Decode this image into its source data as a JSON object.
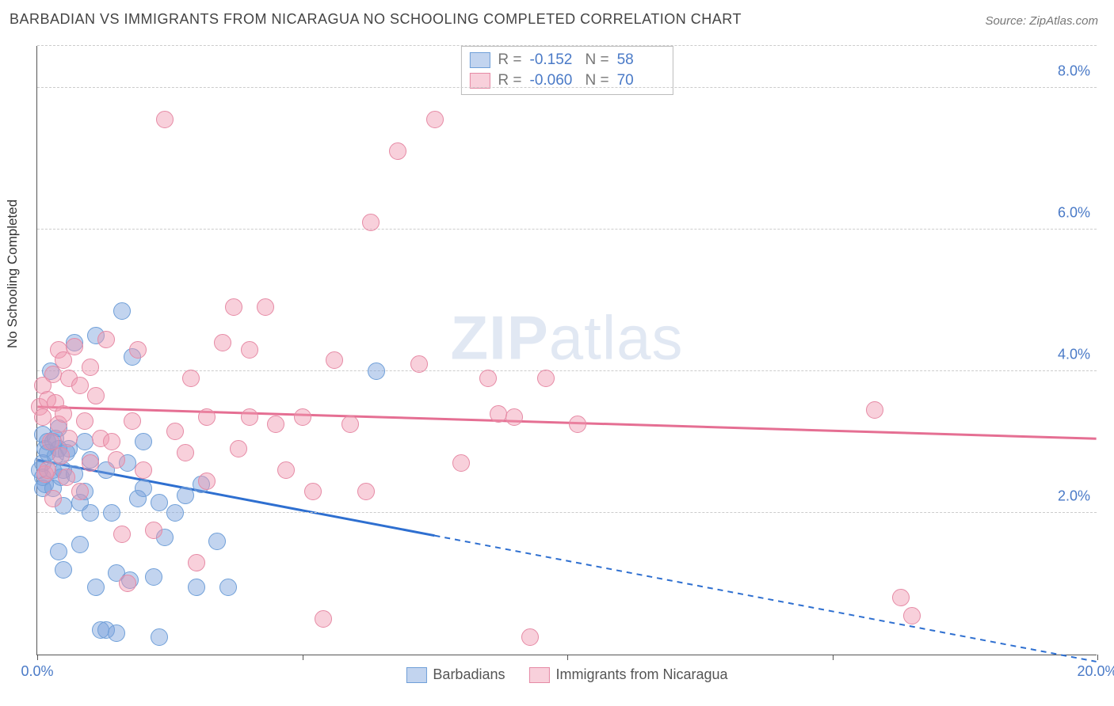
{
  "title": "BARBADIAN VS IMMIGRANTS FROM NICARAGUA NO SCHOOLING COMPLETED CORRELATION CHART",
  "source": "Source: ZipAtlas.com",
  "ylabel": "No Schooling Completed",
  "watermark_a": "ZIP",
  "watermark_b": "atlas",
  "chart": {
    "type": "scatter",
    "xlim": [
      0,
      20
    ],
    "ylim": [
      0,
      8.6
    ],
    "xticks": [
      0,
      5,
      10,
      15,
      20
    ],
    "yticks": [
      2,
      4,
      6,
      8
    ],
    "xtick_labels": {
      "0": "0.0%",
      "20": "20.0%"
    },
    "ytick_labels": {
      "2": "2.0%",
      "4": "4.0%",
      "6": "6.0%",
      "8": "8.0%"
    },
    "grid_color": "#cccccc",
    "background": "#ffffff",
    "point_radius": 11,
    "series": [
      {
        "key": "barbadians",
        "label": "Barbadians",
        "fill": "rgba(120,160,220,0.45)",
        "stroke": "#6f9fd8",
        "line_color": "#2e6fd0",
        "r": "-0.152",
        "n": "58",
        "trend": {
          "x1": 0,
          "y1": 2.75,
          "x2": 20,
          "y2": -0.1,
          "solid_until_x": 7.5
        },
        "points": [
          [
            0.05,
            2.6
          ],
          [
            0.1,
            2.7
          ],
          [
            0.1,
            2.5
          ],
          [
            0.1,
            3.1
          ],
          [
            0.1,
            2.35
          ],
          [
            0.15,
            2.9
          ],
          [
            0.15,
            2.4
          ],
          [
            0.2,
            2.85
          ],
          [
            0.2,
            3.0
          ],
          [
            0.25,
            4.0
          ],
          [
            0.3,
            2.6
          ],
          [
            0.3,
            2.35
          ],
          [
            0.3,
            3.0
          ],
          [
            0.35,
            2.8
          ],
          [
            0.35,
            3.05
          ],
          [
            0.4,
            1.45
          ],
          [
            0.4,
            2.9
          ],
          [
            0.4,
            3.2
          ],
          [
            0.45,
            2.5
          ],
          [
            0.5,
            2.6
          ],
          [
            0.5,
            2.1
          ],
          [
            0.5,
            1.2
          ],
          [
            0.55,
            2.85
          ],
          [
            0.6,
            2.9
          ],
          [
            0.7,
            4.4
          ],
          [
            0.7,
            2.55
          ],
          [
            0.8,
            1.55
          ],
          [
            0.8,
            2.15
          ],
          [
            0.9,
            3.0
          ],
          [
            0.9,
            2.3
          ],
          [
            1.0,
            2.0
          ],
          [
            1.0,
            2.75
          ],
          [
            1.1,
            4.5
          ],
          [
            1.1,
            0.95
          ],
          [
            1.2,
            0.35
          ],
          [
            1.3,
            2.6
          ],
          [
            1.3,
            0.35
          ],
          [
            1.4,
            2.0
          ],
          [
            1.5,
            1.15
          ],
          [
            1.5,
            0.3
          ],
          [
            1.6,
            4.85
          ],
          [
            1.7,
            2.7
          ],
          [
            1.75,
            1.05
          ],
          [
            1.8,
            4.2
          ],
          [
            1.9,
            2.2
          ],
          [
            2.0,
            3.0
          ],
          [
            2.0,
            2.35
          ],
          [
            2.2,
            1.1
          ],
          [
            2.3,
            0.25
          ],
          [
            2.3,
            2.15
          ],
          [
            2.4,
            1.65
          ],
          [
            2.6,
            2.0
          ],
          [
            2.8,
            2.25
          ],
          [
            3.0,
            0.95
          ],
          [
            3.1,
            2.4
          ],
          [
            3.4,
            1.6
          ],
          [
            3.6,
            0.95
          ],
          [
            6.4,
            4.0
          ]
        ]
      },
      {
        "key": "nicaragua",
        "label": "Immigrants from Nicaragua",
        "fill": "rgba(240,150,175,0.45)",
        "stroke": "#e68aa5",
        "line_color": "#e56f93",
        "r": "-0.060",
        "n": "70",
        "trend": {
          "x1": 0,
          "y1": 3.5,
          "x2": 20,
          "y2": 3.05,
          "solid_until_x": 20
        },
        "points": [
          [
            0.05,
            3.5
          ],
          [
            0.1,
            3.8
          ],
          [
            0.1,
            3.35
          ],
          [
            0.15,
            2.55
          ],
          [
            0.2,
            3.6
          ],
          [
            0.2,
            2.6
          ],
          [
            0.25,
            3.0
          ],
          [
            0.3,
            3.95
          ],
          [
            0.3,
            2.2
          ],
          [
            0.35,
            3.55
          ],
          [
            0.4,
            3.25
          ],
          [
            0.4,
            4.3
          ],
          [
            0.45,
            2.8
          ],
          [
            0.5,
            4.15
          ],
          [
            0.5,
            3.4
          ],
          [
            0.55,
            2.5
          ],
          [
            0.6,
            3.9
          ],
          [
            0.6,
            3.05
          ],
          [
            0.7,
            4.35
          ],
          [
            0.8,
            3.8
          ],
          [
            0.8,
            2.3
          ],
          [
            0.9,
            3.3
          ],
          [
            1.0,
            4.05
          ],
          [
            1.0,
            2.7
          ],
          [
            1.1,
            3.65
          ],
          [
            1.2,
            3.05
          ],
          [
            1.3,
            4.45
          ],
          [
            1.4,
            3.0
          ],
          [
            1.5,
            2.75
          ],
          [
            1.6,
            1.7
          ],
          [
            1.7,
            1.0
          ],
          [
            1.8,
            3.3
          ],
          [
            1.9,
            4.3
          ],
          [
            2.0,
            2.6
          ],
          [
            2.2,
            1.75
          ],
          [
            2.4,
            7.55
          ],
          [
            2.6,
            3.15
          ],
          [
            2.8,
            2.85
          ],
          [
            2.9,
            3.9
          ],
          [
            3.0,
            1.3
          ],
          [
            3.2,
            3.35
          ],
          [
            3.2,
            2.45
          ],
          [
            3.5,
            4.4
          ],
          [
            3.7,
            4.9
          ],
          [
            3.8,
            2.9
          ],
          [
            4.0,
            3.35
          ],
          [
            4.0,
            4.3
          ],
          [
            4.3,
            4.9
          ],
          [
            4.5,
            3.25
          ],
          [
            4.7,
            2.6
          ],
          [
            5.0,
            3.35
          ],
          [
            5.2,
            2.3
          ],
          [
            5.4,
            0.5
          ],
          [
            5.6,
            4.15
          ],
          [
            5.9,
            3.25
          ],
          [
            6.2,
            2.3
          ],
          [
            6.3,
            6.1
          ],
          [
            6.8,
            7.1
          ],
          [
            7.2,
            4.1
          ],
          [
            7.5,
            7.55
          ],
          [
            8.0,
            2.7
          ],
          [
            8.5,
            3.9
          ],
          [
            8.7,
            3.4
          ],
          [
            9.0,
            3.35
          ],
          [
            9.3,
            0.25
          ],
          [
            9.6,
            3.9
          ],
          [
            10.2,
            3.25
          ],
          [
            15.8,
            3.45
          ],
          [
            16.5,
            0.55
          ],
          [
            16.3,
            0.8
          ]
        ]
      }
    ]
  },
  "legend_labels": {
    "R": "R =",
    "N": "N ="
  }
}
